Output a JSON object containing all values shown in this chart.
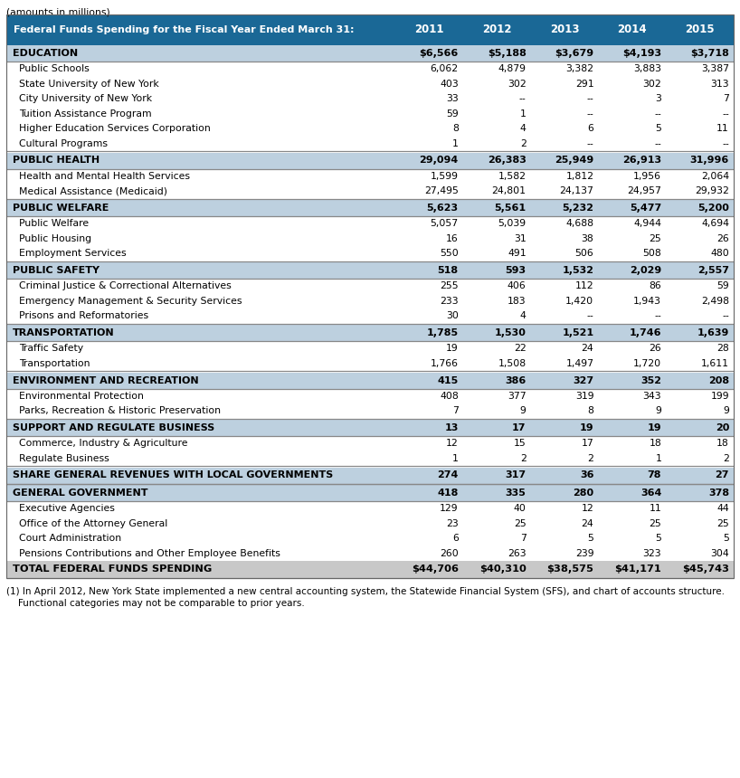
{
  "title_note": "(amounts in millions)",
  "header_bg": "#1A6896",
  "header_text_color": "#FFFFFF",
  "category_bg": "#BDD0DF",
  "total_bg": "#C8C8C8",
  "white_bg": "#FFFFFF",
  "separator_color": "#888888",
  "col_header": [
    "Federal Funds Spending for the Fiscal Year Ended March 31:",
    "2011",
    "2012",
    "2013",
    "2014",
    "2015"
  ],
  "rows": [
    {
      "label": "EDUCATION",
      "type": "category",
      "values": [
        "$6,566",
        "$5,188",
        "$3,679",
        "$4,193",
        "$3,718"
      ]
    },
    {
      "label": "Public Schools",
      "type": "detail",
      "values": [
        "6,062",
        "4,879",
        "3,382",
        "3,883",
        "3,387"
      ]
    },
    {
      "label": "State University of New York",
      "type": "detail",
      "values": [
        "403",
        "302",
        "291",
        "302",
        "313"
      ]
    },
    {
      "label": "City University of New York",
      "type": "detail",
      "values": [
        "33",
        "--",
        "--",
        "3",
        "7"
      ]
    },
    {
      "label": "Tuition Assistance Program",
      "type": "detail",
      "values": [
        "59",
        "1",
        "--",
        "--",
        "--"
      ]
    },
    {
      "label": "Higher Education Services Corporation",
      "type": "detail",
      "values": [
        "8",
        "4",
        "6",
        "5",
        "11"
      ]
    },
    {
      "label": "Cultural Programs",
      "type": "detail",
      "values": [
        "1",
        "2",
        "--",
        "--",
        "--"
      ]
    },
    {
      "label": "PUBLIC HEALTH",
      "type": "category",
      "values": [
        "29,094",
        "26,383",
        "25,949",
        "26,913",
        "31,996"
      ]
    },
    {
      "label": "Health and Mental Health Services",
      "type": "detail",
      "values": [
        "1,599",
        "1,582",
        "1,812",
        "1,956",
        "2,064"
      ]
    },
    {
      "label": "Medical Assistance (Medicaid)",
      "type": "detail",
      "values": [
        "27,495",
        "24,801",
        "24,137",
        "24,957",
        "29,932"
      ]
    },
    {
      "label": "PUBLIC WELFARE",
      "type": "category",
      "values": [
        "5,623",
        "5,561",
        "5,232",
        "5,477",
        "5,200"
      ]
    },
    {
      "label": "Public Welfare",
      "type": "detail",
      "values": [
        "5,057",
        "5,039",
        "4,688",
        "4,944",
        "4,694"
      ]
    },
    {
      "label": "Public Housing",
      "type": "detail",
      "values": [
        "16",
        "31",
        "38",
        "25",
        "26"
      ]
    },
    {
      "label": "Employment Services",
      "type": "detail",
      "values": [
        "550",
        "491",
        "506",
        "508",
        "480"
      ]
    },
    {
      "label": "PUBLIC SAFETY",
      "type": "category",
      "values": [
        "518",
        "593",
        "1,532",
        "2,029",
        "2,557"
      ]
    },
    {
      "label": "Criminal Justice & Correctional Alternatives",
      "type": "detail",
      "values": [
        "255",
        "406",
        "112",
        "86",
        "59"
      ]
    },
    {
      "label": "Emergency Management & Security Services",
      "type": "detail",
      "values": [
        "233",
        "183",
        "1,420",
        "1,943",
        "2,498"
      ]
    },
    {
      "label": "Prisons and Reformatories",
      "type": "detail",
      "values": [
        "30",
        "4",
        "--",
        "--",
        "--"
      ]
    },
    {
      "label": "TRANSPORTATION",
      "type": "category",
      "values": [
        "1,785",
        "1,530",
        "1,521",
        "1,746",
        "1,639"
      ]
    },
    {
      "label": "Traffic Safety",
      "type": "detail",
      "values": [
        "19",
        "22",
        "24",
        "26",
        "28"
      ]
    },
    {
      "label": "Transportation",
      "type": "detail",
      "values": [
        "1,766",
        "1,508",
        "1,497",
        "1,720",
        "1,611"
      ]
    },
    {
      "label": "ENVIRONMENT AND RECREATION",
      "type": "category",
      "values": [
        "415",
        "386",
        "327",
        "352",
        "208"
      ]
    },
    {
      "label": "Environmental Protection",
      "type": "detail",
      "values": [
        "408",
        "377",
        "319",
        "343",
        "199"
      ]
    },
    {
      "label": "Parks, Recreation & Historic Preservation",
      "type": "detail",
      "values": [
        "7",
        "9",
        "8",
        "9",
        "9"
      ]
    },
    {
      "label": "SUPPORT AND REGULATE BUSINESS",
      "type": "category",
      "values": [
        "13",
        "17",
        "19",
        "19",
        "20"
      ]
    },
    {
      "label": "Commerce, Industry & Agriculture",
      "type": "detail",
      "values": [
        "12",
        "15",
        "17",
        "18",
        "18"
      ]
    },
    {
      "label": "Regulate Business",
      "type": "detail",
      "values": [
        "1",
        "2",
        "2",
        "1",
        "2"
      ]
    },
    {
      "label": "SHARE GENERAL REVENUES WITH LOCAL GOVERNMENTS",
      "type": "category_single",
      "values": [
        "274",
        "317",
        "36",
        "78",
        "27"
      ]
    },
    {
      "label": "GENERAL GOVERNMENT",
      "type": "category",
      "values": [
        "418",
        "335",
        "280",
        "364",
        "378"
      ]
    },
    {
      "label": "Executive Agencies",
      "type": "detail",
      "values": [
        "129",
        "40",
        "12",
        "11",
        "44"
      ]
    },
    {
      "label": "Office of the Attorney General",
      "type": "detail",
      "values": [
        "23",
        "25",
        "24",
        "25",
        "25"
      ]
    },
    {
      "label": "Court Administration",
      "type": "detail",
      "values": [
        "6",
        "7",
        "5",
        "5",
        "5"
      ]
    },
    {
      "label": "Pensions Contributions and Other Employee Benefits",
      "type": "detail",
      "values": [
        "260",
        "263",
        "239",
        "323",
        "304"
      ]
    },
    {
      "label": "TOTAL FEDERAL FUNDS SPENDING",
      "type": "total",
      "values": [
        "$44,706",
        "$40,310",
        "$38,575",
        "$41,171",
        "$45,743"
      ]
    }
  ],
  "footnote_line1": "(1) In April 2012, New York State implemented a new central accounting system, the Statewide Financial System (SFS), and chart of accounts structure.",
  "footnote_line2": "    Functional categories may not be comparable to prior years."
}
